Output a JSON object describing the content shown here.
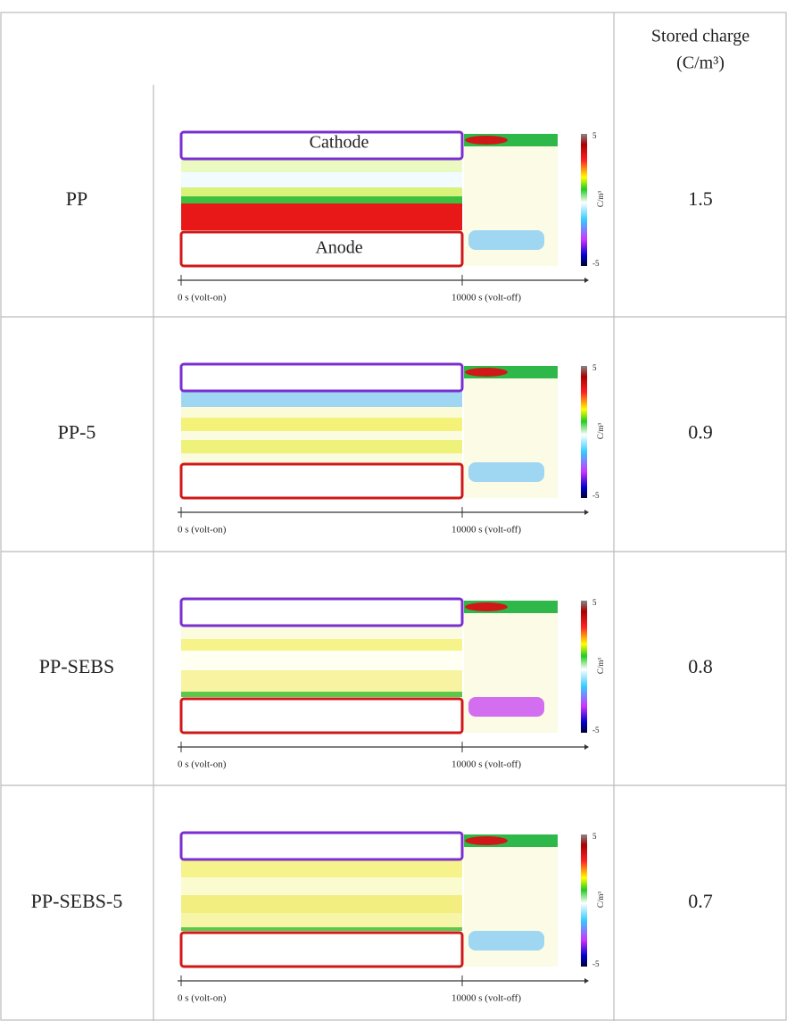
{
  "header": {
    "stored_charge": "Stored charge",
    "unit": "(C/m³)"
  },
  "rows": [
    {
      "name": "PP",
      "figure": {
        "cathode": "Cathode",
        "anode": "Anode",
        "time_start": "0 s (volt-on)",
        "time_end": "10000 s (volt-off)",
        "scale_max": "5",
        "scale_min": "-5",
        "scale_unit": "C/m³"
      },
      "stored_charge": "1.5"
    },
    {
      "name": "PP-5",
      "figure": {
        "time_start": "0 s (volt-on)",
        "time_end": "10000 s (volt-off)",
        "scale_max": "5",
        "scale_min": "-5",
        "scale_unit": "C/m³"
      },
      "stored_charge": "0.9"
    },
    {
      "name": "PP-SEBS",
      "figure": {
        "time_start": "0 s (volt-on)",
        "time_end": "10000 s (volt-off)",
        "scale_max": "5",
        "scale_min": "-5",
        "scale_unit": "C/m³"
      },
      "stored_charge": "0.8"
    },
    {
      "name": "PP-SEBS-5",
      "figure": {
        "time_start": "0 s (volt-on)",
        "time_end": "10000 s (volt-off)",
        "scale_max": "5",
        "scale_min": "-5",
        "scale_unit": "C/m³"
      },
      "stored_charge": "0.7"
    }
  ]
}
